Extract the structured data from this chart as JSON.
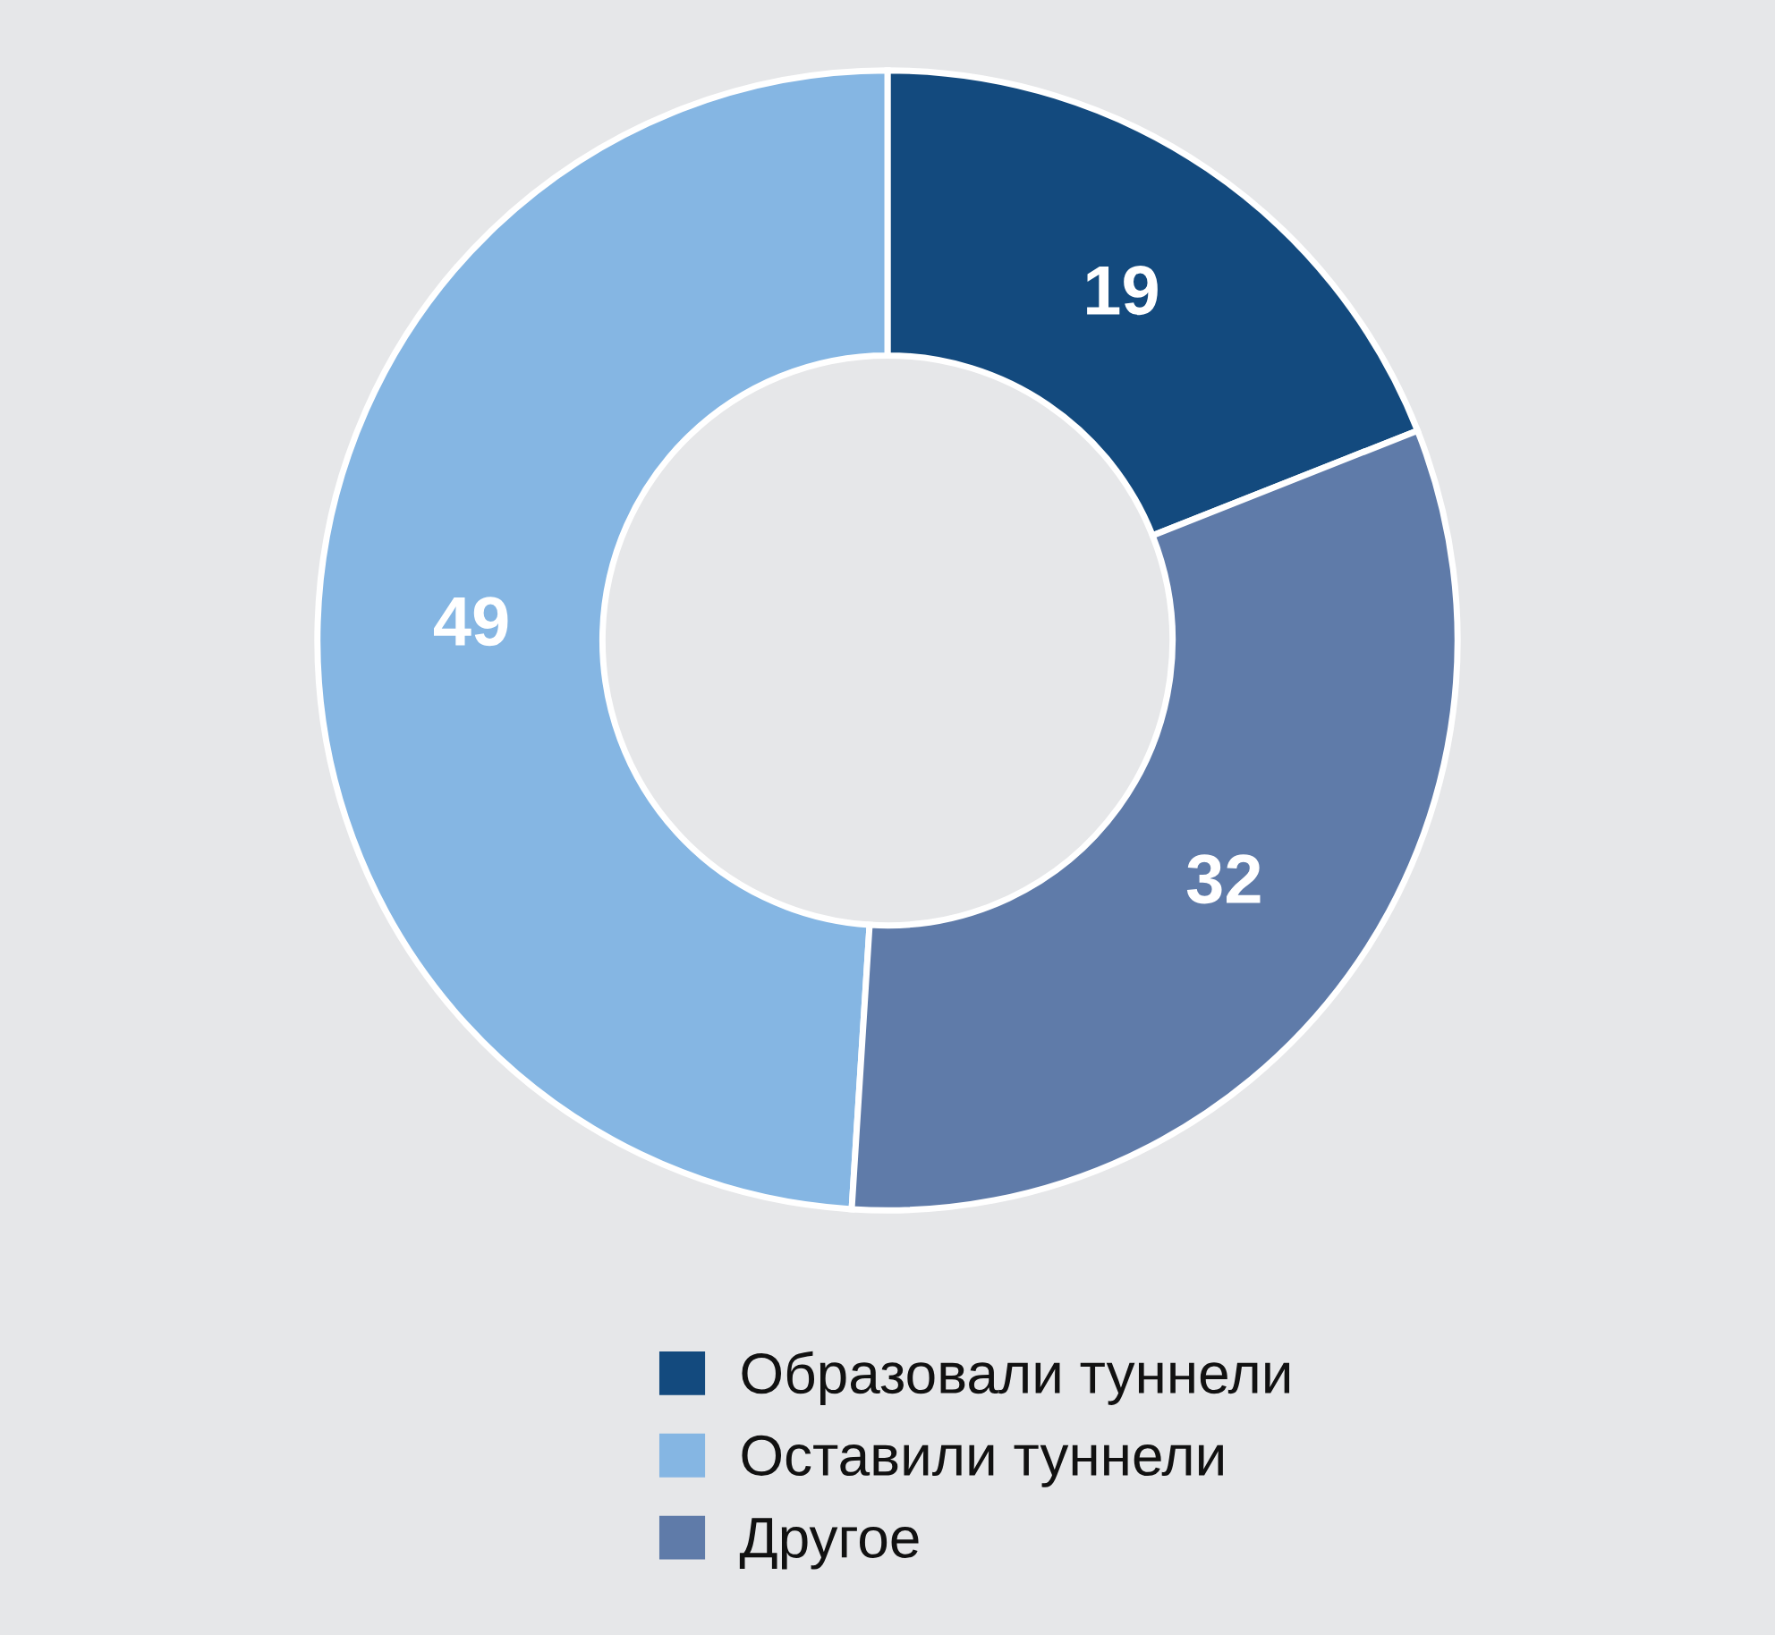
{
  "chart_data": {
    "type": "donut",
    "categories": [
      "Образовали туннели",
      "Оставили туннели",
      "Другое"
    ],
    "values": [
      19,
      49,
      32
    ],
    "colors": [
      "#134a7e",
      "#85b6e3",
      "#5f7ba9"
    ],
    "data_labels": true,
    "legend": "bottom"
  }
}
